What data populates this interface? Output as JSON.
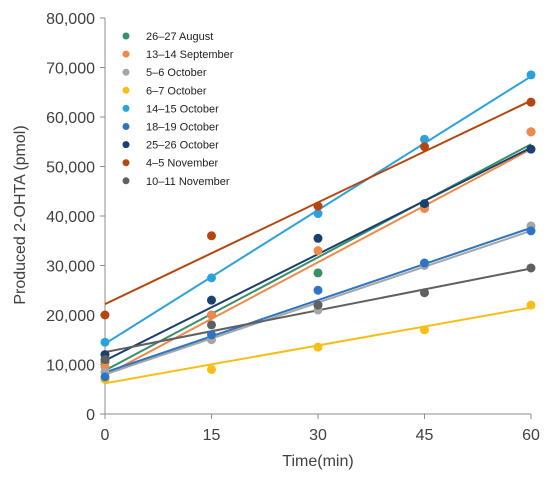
{
  "chart_data": {
    "type": "scatter",
    "xlabel": "Time(min)",
    "ylabel": "Produced 2-OHTA (pmol)",
    "xlim": [
      0,
      60
    ],
    "ylim": [
      0,
      80000
    ],
    "xticks": [
      0,
      15,
      30,
      45,
      60
    ],
    "yticks": [
      0,
      10000,
      20000,
      30000,
      40000,
      50000,
      60000,
      70000,
      80000
    ],
    "xtick_labels": [
      "0",
      "15",
      "30",
      "45",
      "60"
    ],
    "ytick_labels": [
      "0",
      "10,000",
      "20,000",
      "30,000",
      "40,000",
      "50,000",
      "60,000",
      "70,000",
      "80,000"
    ],
    "grid": false,
    "legend_position": "top-left",
    "trendlines": "linear",
    "x": [
      0,
      15,
      30,
      45,
      60
    ],
    "series": [
      {
        "name": "26–27 August",
        "color": "#3a8f68",
        "values": [
          10500,
          20000,
          28500,
          42000,
          57000
        ],
        "trend": [
          8800,
          54500
        ]
      },
      {
        "name": "13–14 September",
        "color": "#f0884a",
        "values": [
          9500,
          20000,
          33000,
          41500,
          57000
        ],
        "trend": [
          7800,
          53500
        ]
      },
      {
        "name": "5–6 October",
        "color": "#a6a6a6",
        "values": [
          8500,
          15000,
          21000,
          30000,
          38000
        ],
        "trend": [
          8000,
          37000
        ]
      },
      {
        "name": "6–7 October",
        "color": "#f8be16",
        "values": [
          7000,
          9000,
          13500,
          17000,
          22000
        ],
        "trend": [
          6200,
          21500
        ]
      },
      {
        "name": "14–15 October",
        "color": "#2ba2dc",
        "values": [
          14500,
          27500,
          40500,
          55500,
          68500
        ],
        "trend": [
          14200,
          68200
        ]
      },
      {
        "name": "18–19 October",
        "color": "#2d74c4",
        "values": [
          7500,
          16000,
          25000,
          30500,
          37000
        ],
        "trend": [
          8400,
          37600
        ]
      },
      {
        "name": "25–26 October",
        "color": "#1b3f6e",
        "values": [
          12000,
          23000,
          35500,
          42500,
          53500
        ],
        "trend": [
          10800,
          53800
        ]
      },
      {
        "name": "4–5 November",
        "color": "#b5460f",
        "values": [
          20000,
          36000,
          42000,
          54000,
          63000
        ],
        "trend": [
          22200,
          63300
        ]
      },
      {
        "name": "10–11 November",
        "color": "#606060",
        "values": [
          11000,
          18000,
          22000,
          24500,
          29500
        ],
        "trend": [
          12500,
          29400
        ]
      }
    ]
  }
}
